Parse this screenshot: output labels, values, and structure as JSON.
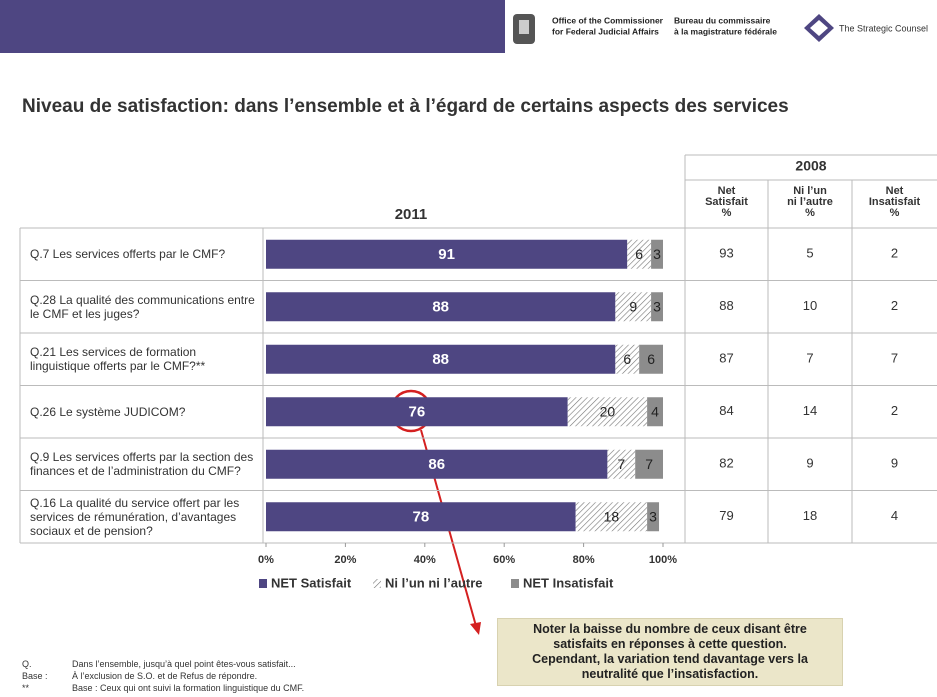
{
  "header": {
    "org_en": [
      "Office of the Commissioner",
      "for Federal Judicial Affairs"
    ],
    "org_fr": [
      "Bureau du commissaire",
      "à la magistrature fédérale"
    ],
    "firm": "The Strategic Counsel"
  },
  "chart_data": {
    "type": "bar",
    "stacked": true,
    "orientation": "horizontal",
    "title": "Niveau de satisfaction: dans l’ensemble et à l’égard de certains aspects des services",
    "subtitle": "2011",
    "categories": [
      "Q.7 Les services offerts par le CMF?",
      "Q.28 La qualité des communications entre le CMF et les juges?",
      "Q.21 Les services de formation linguistique offerts par le CMF?**",
      "Q.26 Le système JUDICOM?",
      "Q.9 Les services offerts par la section des finances et de l’administration du CMF?",
      "Q.16 La qualité du service offert par les services de rémunération, d’avantages sociaux et de pension?"
    ],
    "series": [
      {
        "name": "NET Satisfait",
        "color": "#4e4682",
        "values": [
          91,
          88,
          88,
          76,
          86,
          78
        ]
      },
      {
        "name": "Ni l’un ni l’autre",
        "color": "hatch",
        "values": [
          6,
          9,
          6,
          20,
          7,
          18
        ]
      },
      {
        "name": "NET Insatisfait",
        "color": "#8c8c8c",
        "values": [
          3,
          3,
          6,
          4,
          7,
          3
        ]
      }
    ],
    "xlim": [
      0,
      100
    ],
    "xticks": [
      {
        "value": 0,
        "label": "0%"
      },
      {
        "value": 20,
        "label": "20%"
      },
      {
        "value": 40,
        "label": "40%"
      },
      {
        "value": 60,
        "label": "60%"
      },
      {
        "value": 80,
        "label": "80%"
      },
      {
        "value": 100,
        "label": "100%"
      }
    ],
    "legend": "bottom"
  },
  "table_2008": {
    "title": "2008",
    "columns": [
      [
        "Net",
        "Satisfait",
        "%"
      ],
      [
        "Ni l’un",
        "ni l’autre",
        "%"
      ],
      [
        "Net",
        "Insatisfait",
        "%"
      ]
    ],
    "rows": [
      [
        93,
        5,
        2
      ],
      [
        88,
        10,
        2
      ],
      [
        87,
        7,
        7
      ],
      [
        84,
        14,
        2
      ],
      [
        82,
        9,
        9
      ],
      [
        79,
        18,
        4
      ]
    ]
  },
  "callout": [
    "Noter la baisse du nombre de ceux disant être",
    "satisfaits en réponses à cette question.",
    "Cependant, la variation tend davantage vers la",
    "neutralité que l’insatisfaction."
  ],
  "footnotes": [
    [
      "Q.",
      "Dans l’ensemble, jusqu’à quel point êtes-vous satisfait..."
    ],
    [
      "Base :",
      "À l’exclusion de S.O. et de Refus de répondre."
    ],
    [
      "**",
      "Base : Ceux qui ont suivi la formation linguistique du CMF."
    ]
  ]
}
